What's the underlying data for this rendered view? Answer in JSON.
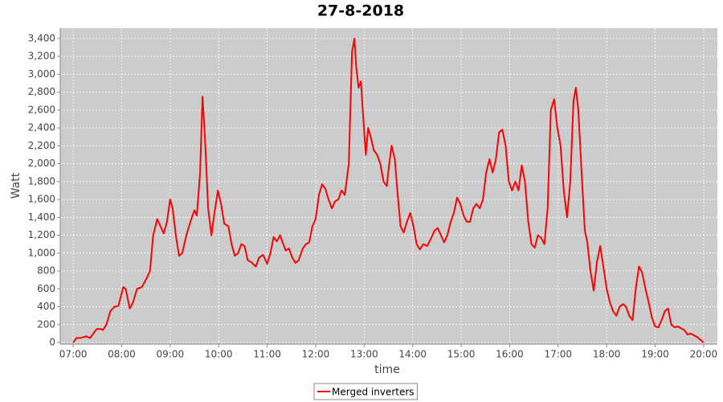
{
  "chart_data": {
    "type": "line",
    "title": "27-8-2018",
    "x_label": "time",
    "y_label": "Watt",
    "x": [
      "07:00",
      "07:04",
      "07:09",
      "07:16",
      "07:21",
      "07:29",
      "07:34",
      "07:37",
      "07:41",
      "07:46",
      "07:51",
      "07:56",
      "08:02",
      "08:05",
      "08:10",
      "08:14",
      "08:19",
      "08:25",
      "08:31",
      "08:35",
      "08:39",
      "08:44",
      "08:48",
      "08:52",
      "08:56",
      "09:00",
      "09:03",
      "09:07",
      "09:11",
      "09:15",
      "09:20",
      "09:25",
      "09:30",
      "09:33",
      "09:37",
      "09:40",
      "09:43",
      "09:47",
      "09:51",
      "09:54",
      "09:59",
      "10:03",
      "10:07",
      "10:12",
      "10:16",
      "10:20",
      "10:24",
      "10:28",
      "10:32",
      "10:36",
      "10:40",
      "10:46",
      "10:50",
      "10:55",
      "11:00",
      "11:04",
      "11:08",
      "11:12",
      "11:16",
      "11:19",
      "11:23",
      "11:27",
      "11:31",
      "11:35",
      "11:39",
      "11:44",
      "11:48",
      "11:52",
      "11:56",
      "12:00",
      "12:04",
      "12:08",
      "12:12",
      "12:16",
      "12:20",
      "12:24",
      "12:28",
      "12:32",
      "12:36",
      "12:41",
      "12:45",
      "12:48",
      "12:50",
      "12:53",
      "12:56",
      "12:59",
      "13:02",
      "13:05",
      "13:08",
      "13:12",
      "13:16",
      "13:20",
      "13:24",
      "13:28",
      "13:31",
      "13:34",
      "13:38",
      "13:41",
      "13:45",
      "13:49",
      "13:53",
      "13:57",
      "14:01",
      "14:05",
      "14:09",
      "14:13",
      "14:18",
      "14:22",
      "14:27",
      "14:31",
      "14:35",
      "14:39",
      "14:43",
      "14:47",
      "14:51",
      "14:55",
      "14:59",
      "15:03",
      "15:07",
      "15:11",
      "15:15",
      "15:19",
      "15:23",
      "15:27",
      "15:31",
      "15:35",
      "15:39",
      "15:43",
      "15:47",
      "15:51",
      "15:55",
      "15:59",
      "16:03",
      "16:07",
      "16:11",
      "16:15",
      "16:19",
      "16:23",
      "16:27",
      "16:31",
      "16:35",
      "16:39",
      "16:43",
      "16:47",
      "16:51",
      "16:55",
      "16:59",
      "17:03",
      "17:07",
      "17:11",
      "17:15",
      "17:19",
      "17:22",
      "17:25",
      "17:29",
      "17:33",
      "17:36",
      "17:40",
      "17:44",
      "17:48",
      "17:52",
      "17:56",
      "18:00",
      "18:04",
      "18:08",
      "18:12",
      "18:16",
      "18:20",
      "18:24",
      "18:28",
      "18:32",
      "18:36",
      "18:40",
      "18:44",
      "18:48",
      "18:52",
      "18:56",
      "19:00",
      "19:04",
      "19:08",
      "19:12",
      "19:16",
      "19:20",
      "19:24",
      "19:28",
      "19:32",
      "19:36",
      "19:40",
      "19:44",
      "19:48",
      "19:52",
      "19:56",
      "20:00"
    ],
    "series": [
      {
        "name": "Merged inverters",
        "color": "#ff0000",
        "values": [
          0,
          50,
          50,
          70,
          50,
          150,
          150,
          140,
          200,
          350,
          400,
          410,
          620,
          600,
          380,
          450,
          600,
          620,
          720,
          800,
          1200,
          1380,
          1300,
          1220,
          1350,
          1600,
          1500,
          1200,
          970,
          1000,
          1200,
          1350,
          1480,
          1420,
          1900,
          2750,
          2300,
          1500,
          1200,
          1400,
          1700,
          1550,
          1330,
          1300,
          1100,
          970,
          1000,
          1100,
          1080,
          920,
          900,
          850,
          950,
          980,
          880,
          1000,
          1180,
          1130,
          1200,
          1120,
          1030,
          1050,
          950,
          890,
          920,
          1050,
          1100,
          1120,
          1300,
          1380,
          1650,
          1770,
          1720,
          1600,
          1500,
          1580,
          1600,
          1700,
          1650,
          2000,
          3250,
          3400,
          3100,
          2850,
          2920,
          2500,
          2100,
          2400,
          2300,
          2150,
          2100,
          2000,
          1800,
          1750,
          2000,
          2200,
          2050,
          1700,
          1300,
          1230,
          1350,
          1450,
          1300,
          1100,
          1040,
          1100,
          1080,
          1150,
          1250,
          1280,
          1200,
          1120,
          1200,
          1350,
          1450,
          1620,
          1550,
          1420,
          1350,
          1350,
          1500,
          1550,
          1500,
          1600,
          1900,
          2050,
          1900,
          2050,
          2350,
          2380,
          2200,
          1800,
          1700,
          1800,
          1700,
          1980,
          1800,
          1350,
          1100,
          1060,
          1200,
          1170,
          1100,
          1500,
          2600,
          2720,
          2400,
          2200,
          1700,
          1400,
          1800,
          2700,
          2850,
          2600,
          1900,
          1250,
          1130,
          800,
          580,
          900,
          1080,
          850,
          600,
          450,
          350,
          300,
          400,
          430,
          400,
          300,
          250,
          600,
          850,
          780,
          600,
          450,
          280,
          180,
          170,
          250,
          350,
          380,
          200,
          170,
          180,
          160,
          140,
          90,
          100,
          80,
          60,
          30,
          0
        ]
      }
    ],
    "xlim": [
      "06:44",
      "20:17"
    ],
    "xticks": [
      "07:00",
      "08:00",
      "09:00",
      "10:00",
      "11:00",
      "12:00",
      "13:00",
      "14:00",
      "15:00",
      "16:00",
      "17:00",
      "18:00",
      "19:00",
      "20:00"
    ],
    "ylim": [
      -18,
      3516
    ],
    "yticks": [
      0,
      200,
      400,
      600,
      800,
      {
        "value": 1000,
        "label": "1,000"
      },
      {
        "value": 1200,
        "label": "1,200"
      },
      {
        "value": 1400,
        "label": "1,400"
      },
      {
        "value": 1600,
        "label": "1,600"
      },
      {
        "value": 1800,
        "label": "1,800"
      },
      {
        "value": 2000,
        "label": "2,000"
      },
      {
        "value": 2200,
        "label": "2,200"
      },
      {
        "value": 2400,
        "label": "2,400"
      },
      {
        "value": 2600,
        "label": "2,600"
      },
      {
        "value": 2800,
        "label": "2,800"
      },
      {
        "value": 3000,
        "label": "3,000"
      },
      {
        "value": 3200,
        "label": "3,200"
      },
      {
        "value": 3400,
        "label": "3,400"
      }
    ],
    "grid": true,
    "legend": "bottom"
  }
}
